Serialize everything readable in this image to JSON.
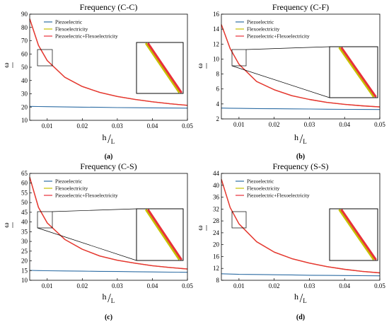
{
  "colors": {
    "piezoelectric": "#2e6da4",
    "flexoelectricity": "#c6c000",
    "piezo_flexo": "#e8303a"
  },
  "chart_data": [
    {
      "type": "line",
      "panel": "(a)",
      "title": "Frequency (C-C)",
      "ylabel": "ω",
      "xlabel_main": "h",
      "xlabel_sub": "L",
      "xlim": [
        0.005,
        0.05
      ],
      "ylim": [
        10,
        90
      ],
      "xticks": [
        0.01,
        0.02,
        0.03,
        0.04,
        0.05
      ],
      "yticks": [
        10,
        20,
        30,
        40,
        50,
        60,
        70,
        80,
        90
      ],
      "x": [
        0.005,
        0.0075,
        0.01,
        0.015,
        0.02,
        0.025,
        0.03,
        0.035,
        0.04,
        0.045,
        0.05
      ],
      "series": [
        {
          "name": "Piezoelectric",
          "values": [
            20.5,
            20.4,
            20.3,
            20.1,
            19.9,
            19.8,
            19.6,
            19.5,
            19.4,
            19.3,
            19.2
          ]
        },
        {
          "name": "Flexoelectricity",
          "values": [
            86.5,
            66.5,
            55.0,
            42.5,
            35.5,
            31.0,
            28.0,
            25.8,
            24.0,
            22.5,
            21.3
          ]
        },
        {
          "name": "Piezoelectric+Flexoelectricity",
          "values": [
            86.5,
            66.5,
            55.0,
            42.5,
            35.5,
            31.0,
            28.0,
            25.8,
            24.0,
            22.5,
            21.3
          ]
        }
      ],
      "legend": "top-left",
      "grid": false
    },
    {
      "type": "line",
      "panel": "(b)",
      "title": "Frequency (C-F)",
      "ylabel": "ω",
      "xlabel_main": "h",
      "xlabel_sub": "L",
      "xlim": [
        0.005,
        0.05
      ],
      "ylim": [
        2,
        16
      ],
      "xticks": [
        0.01,
        0.02,
        0.03,
        0.04,
        0.05
      ],
      "yticks": [
        2,
        4,
        6,
        8,
        10,
        12,
        14,
        16
      ],
      "x": [
        0.005,
        0.0075,
        0.01,
        0.015,
        0.02,
        0.025,
        0.03,
        0.035,
        0.04,
        0.045,
        0.05
      ],
      "series": [
        {
          "name": "Piezoelectric",
          "values": [
            3.45,
            3.43,
            3.41,
            3.38,
            3.36,
            3.34,
            3.32,
            3.3,
            3.28,
            3.27,
            3.26
          ]
        },
        {
          "name": "Flexoelectricity",
          "values": [
            14.6,
            11.4,
            9.3,
            7.0,
            5.9,
            5.1,
            4.6,
            4.2,
            3.95,
            3.75,
            3.6
          ]
        },
        {
          "name": "Piezoelectric+Flexoelectricity",
          "values": [
            14.6,
            11.4,
            9.3,
            7.0,
            5.9,
            5.1,
            4.6,
            4.2,
            3.95,
            3.75,
            3.6
          ]
        }
      ],
      "legend": "top-left",
      "grid": false
    },
    {
      "type": "line",
      "panel": "(c)",
      "title": "Frequency (C-S)",
      "ylabel": "ω",
      "xlabel_main": "h",
      "xlabel_sub": "L",
      "xlim": [
        0.005,
        0.05
      ],
      "ylim": [
        10,
        65
      ],
      "xticks": [
        0.01,
        0.02,
        0.03,
        0.04,
        0.05
      ],
      "yticks": [
        10,
        15,
        20,
        25,
        30,
        35,
        40,
        45,
        50,
        55,
        60,
        65
      ],
      "x": [
        0.005,
        0.0075,
        0.01,
        0.015,
        0.02,
        0.025,
        0.03,
        0.035,
        0.04,
        0.045,
        0.05
      ],
      "series": [
        {
          "name": "Piezoelectric",
          "values": [
            15.1,
            15.0,
            14.9,
            14.8,
            14.7,
            14.6,
            14.5,
            14.4,
            14.3,
            14.2,
            14.1
          ]
        },
        {
          "name": "Flexoelectricity",
          "values": [
            63.0,
            47.5,
            39.5,
            31.0,
            26.0,
            22.5,
            20.3,
            18.8,
            17.5,
            16.6,
            15.8
          ]
        },
        {
          "name": "Piezoelectric+Flexoelectricity",
          "values": [
            63.0,
            47.5,
            39.5,
            31.0,
            26.0,
            22.5,
            20.3,
            18.8,
            17.5,
            16.6,
            15.8
          ]
        }
      ],
      "legend": "top-left",
      "grid": false
    },
    {
      "type": "line",
      "panel": "(d)",
      "title": "Frequency (S-S)",
      "ylabel": "ω",
      "xlabel_main": "h",
      "xlabel_sub": "L",
      "xlim": [
        0.005,
        0.05
      ],
      "ylim": [
        8,
        44
      ],
      "xticks": [
        0.01,
        0.02,
        0.03,
        0.04,
        0.05
      ],
      "yticks": [
        8,
        12,
        16,
        20,
        24,
        28,
        32,
        36,
        40,
        44
      ],
      "x": [
        0.005,
        0.0075,
        0.01,
        0.015,
        0.02,
        0.025,
        0.03,
        0.035,
        0.04,
        0.045,
        0.05
      ],
      "series": [
        {
          "name": "Piezoelectric",
          "values": [
            10.2,
            10.1,
            10.0,
            9.95,
            9.85,
            9.8,
            9.7,
            9.65,
            9.6,
            9.55,
            9.5
          ]
        },
        {
          "name": "Flexoelectricity",
          "values": [
            42.0,
            32.5,
            27.0,
            21.0,
            17.5,
            15.3,
            13.8,
            12.6,
            11.7,
            11.0,
            10.5
          ]
        },
        {
          "name": "Piezoelectric+Flexoelectricity",
          "values": [
            42.0,
            32.5,
            27.0,
            21.0,
            17.5,
            15.3,
            13.8,
            12.6,
            11.7,
            11.0,
            10.5
          ]
        }
      ],
      "legend": "top-left",
      "grid": false
    }
  ]
}
